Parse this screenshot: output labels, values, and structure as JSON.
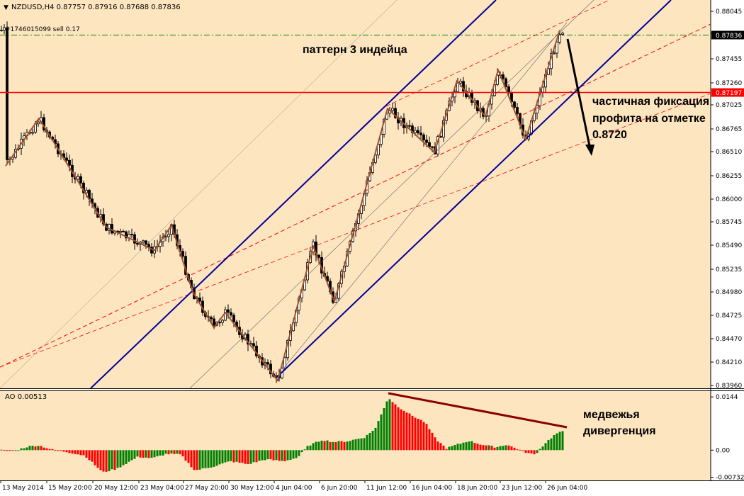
{
  "header": {
    "symbol_line": "NZDUSD,H4  0.87757 0.87916 0.87688 0.87836",
    "order_label": "#1746015099 sell 0.17"
  },
  "colors": {
    "background": "#fde5bf",
    "candle": "#000000",
    "channel": "#000099",
    "trend_dashed": "#ff0000",
    "horizontal_level": "#ff0000",
    "order_line": "#008000",
    "zigzag": "#a0522d",
    "ao_up": "#008000",
    "ao_down": "#ff0000",
    "divergence_line": "#8b0000",
    "current_price_bg": "#000000",
    "level_price_bg": "#ff0000"
  },
  "price_panel": {
    "ylim": [
      0.8393,
      0.881
    ],
    "tick_labels": [
      "0.88045",
      "0.87750",
      "0.87455",
      "0.87260",
      "0.87025",
      "0.86765",
      "0.86510",
      "0.86255",
      "0.86000",
      "0.85745",
      "0.85490",
      "0.85235",
      "0.84980",
      "0.84725",
      "0.84470",
      "0.84210",
      "0.83960"
    ],
    "current_price_label": "0.87836",
    "current_price": 0.87836,
    "level_label": "0.87197",
    "level_price": 0.87197,
    "annotations": {
      "pattern": "паттерн 3 индейца",
      "fix_line1": "частичная фиксация",
      "fix_line2": "профита на отметке",
      "fix_line3": "0.8720"
    }
  },
  "ao_panel": {
    "label": "AO 0.00513",
    "ylim": [
      -0.0078,
      0.0152
    ],
    "tick_labels": [
      "0.0144",
      "0.00",
      "-0.00732"
    ],
    "annotations": {
      "div_line1": "медвежья",
      "div_line2": "дивергенция"
    }
  },
  "x_axis": {
    "labels": [
      "13 May 2014",
      "15 May 20:00",
      "20 May 12:00",
      "23 May 04:00",
      "27 May 20:00",
      "30 May 12:00",
      "4 Jun 04:00",
      "6 Jun 20:00",
      "11 Jun 12:00",
      "16 Jun 04:00",
      "18 Jun 20:00",
      "23 Jun 12:00",
      "26 Jun 04:00"
    ]
  },
  "chart_data": {
    "type": "candlestick",
    "symbol": "NZDUSD",
    "timeframe": "H4",
    "ohlc_last": {
      "open": 0.87757,
      "high": 0.87916,
      "low": 0.87688,
      "close": 0.87836
    },
    "price_path_approx": [
      {
        "x": "13 May 2014",
        "price": 0.8638
      },
      {
        "x": "15 May 20:00",
        "price": 0.8691
      },
      {
        "x": "20 May 12:00",
        "price": 0.857
      },
      {
        "x": "23 May 04:00",
        "price": 0.8544
      },
      {
        "x": "23 May 04:00",
        "price": 0.8572
      },
      {
        "x": "27 May 20:00",
        "price": 0.8498
      },
      {
        "x": "27 May 20:00",
        "price": 0.8458
      },
      {
        "x": "30 May 12:00",
        "price": 0.8475
      },
      {
        "x": "4 Jun 04:00",
        "price": 0.8399
      },
      {
        "x": "6 Jun 20:00",
        "price": 0.8549
      },
      {
        "x": "6 Jun 20:00",
        "price": 0.8487
      },
      {
        "x": "11 Jun 12:00",
        "price": 0.8702
      },
      {
        "x": "16 Jun 04:00",
        "price": 0.8653
      },
      {
        "x": "18 Jun 20:00",
        "price": 0.8733
      },
      {
        "x": "18 Jun 20:00",
        "price": 0.8693
      },
      {
        "x": "23 Jun 12:00",
        "price": 0.8745
      },
      {
        "x": "23 Jun 12:00",
        "price": 0.8668
      },
      {
        "x": "26 Jun 04:00",
        "price": 0.8789
      }
    ],
    "ao_values_approx": [
      {
        "x": "13 May 2014",
        "value": 0.0
      },
      {
        "x": "15 May 20:00",
        "value": 0.0012
      },
      {
        "x": "20 May 12:00",
        "value": -0.006
      },
      {
        "x": "23 May 04:00",
        "value": -0.0022
      },
      {
        "x": "27 May 20:00",
        "value": -0.0045
      },
      {
        "x": "30 May 12:00",
        "value": -0.003
      },
      {
        "x": "4 Jun 04:00",
        "value": -0.0025
      },
      {
        "x": "6 Jun 20:00",
        "value": 0.0025
      },
      {
        "x": "11 Jun 12:00",
        "value": 0.0144
      },
      {
        "x": "16 Jun 04:00",
        "value": 0.006
      },
      {
        "x": "18 Jun 20:00",
        "value": 0.002
      },
      {
        "x": "23 Jun 12:00",
        "value": -0.001
      },
      {
        "x": "26 Jun 04:00",
        "value": 0.0051
      }
    ]
  }
}
